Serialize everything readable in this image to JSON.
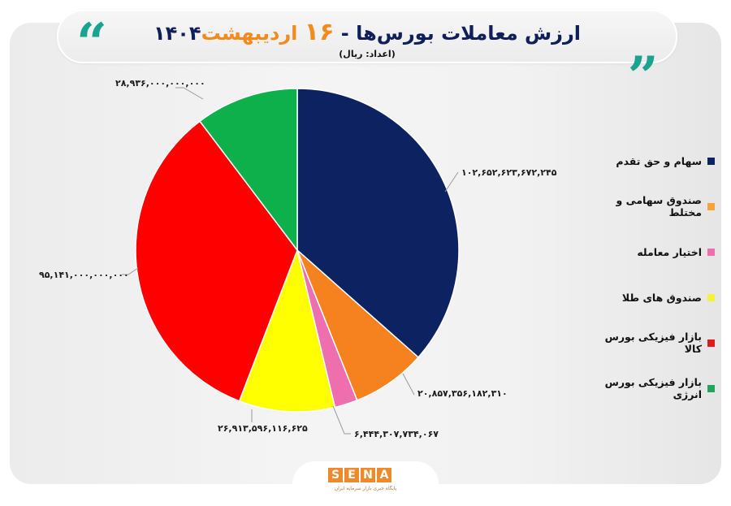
{
  "header": {
    "title_prefix": "ارزش معاملات بورس‌ها - ",
    "title_day": "۱۶",
    "title_month": " اردیبهشت",
    "title_year": "۱۴۰۴",
    "subtitle": "(اعداد: ریال)",
    "quote_left_icon": "open-quote-icon",
    "quote_right_icon": "close-quote-icon",
    "accent_color": "#1aa390",
    "highlight_color": "#f28a1c"
  },
  "chart_data": {
    "type": "pie",
    "title": "ارزش معاملات بورس‌ها - ۱۶ اردیبهشت ۱۴۰۴",
    "subtitle": "(اعداد: ریال)",
    "unit": "Rial",
    "legend_position": "right",
    "categories": [
      "سهام و حق تقدم",
      "صندوق سهامی و مختلط",
      "اختیار معامله",
      "صندوق های طلا",
      "بازار فیزیکی بورس کالا",
      "بازار فیزیکی بورس انرژی"
    ],
    "values": [
      102652623672245,
      20857356182310,
      6444307734067,
      26913596116625,
      95141000000000,
      28936000000000
    ],
    "labels": [
      "۱۰۲,۶۵۲,۶۲۳,۶۷۲,۲۴۵",
      "۲۰,۸۵۷,۳۵۶,۱۸۲,۳۱۰",
      "۶,۴۴۴,۳۰۷,۷۳۴,۰۶۷",
      "۲۶,۹۱۳,۵۹۶,۱۱۶,۶۲۵",
      "۹۵,۱۴۱,۰۰۰,۰۰۰,۰۰۰",
      "۲۸,۹۳۶,۰۰۰,۰۰۰,۰۰۰"
    ],
    "colors": [
      "#0d2260",
      "#f5821f",
      "#ef6fae",
      "#ffff00",
      "#ff0000",
      "#0db04b"
    ]
  },
  "legend": {
    "items": [
      {
        "label": "سهام و حق تقدم",
        "color": "#0d2260"
      },
      {
        "label": "صندوق سهامی و مختلط",
        "color": "#f5821f"
      },
      {
        "label": "اختیار معامله",
        "color": "#ef6fae"
      },
      {
        "label": "صندوق های طلا",
        "color": "#ffff00"
      },
      {
        "label": "بازار فیزیکی بورس کالا",
        "color": "#ff0000"
      },
      {
        "label": "بازار فیزیکی بورس انرژی",
        "color": "#0db04b"
      }
    ]
  },
  "footer": {
    "logo_letters": [
      "S",
      "E",
      "N",
      "A"
    ],
    "logo_tagline": "پایگاه خبری بازار سرمایه ایران"
  }
}
